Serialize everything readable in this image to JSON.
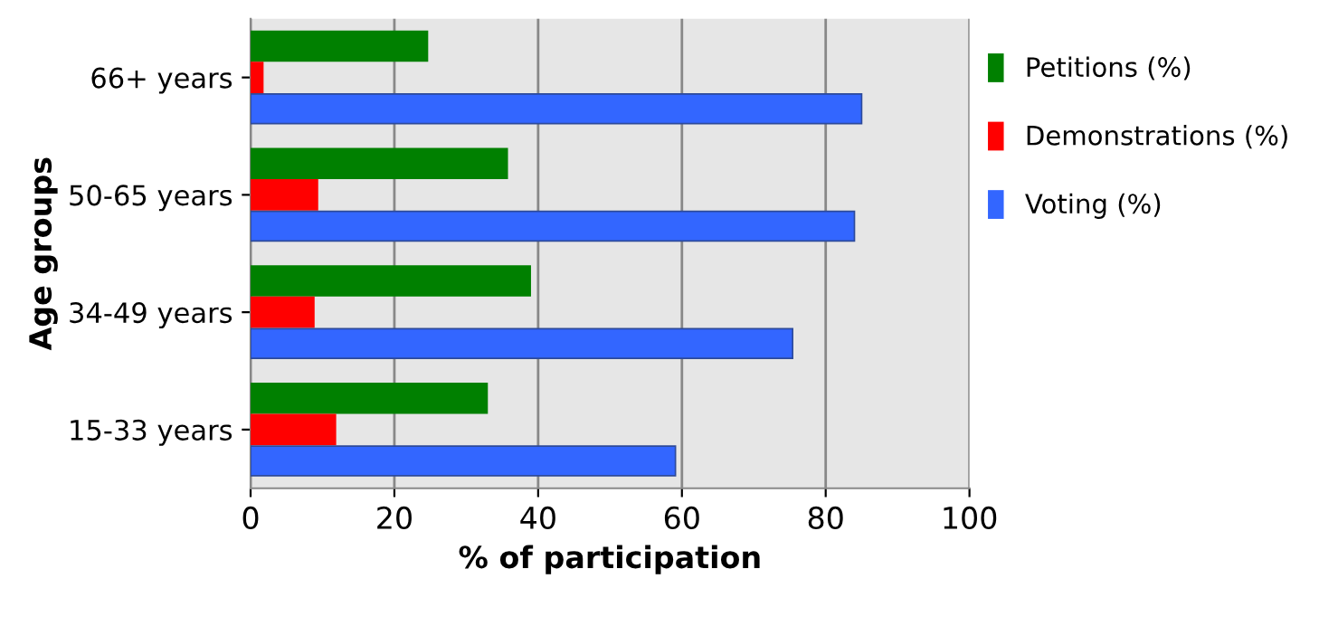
{
  "chart_data": {
    "type": "bar",
    "orientation": "horizontal",
    "xlabel": "% of participation",
    "ylabel": "Age groups",
    "categories": [
      "66+ years",
      "50-65 years",
      "34-49 years",
      "15-33 years"
    ],
    "series": [
      {
        "name": "Petitions (%)",
        "color": "#008000",
        "values": [
          24.6,
          35.7,
          38.9,
          32.9
        ]
      },
      {
        "name": "Demonstrations (%)",
        "color": "#ff0000",
        "values": [
          1.7,
          9.3,
          8.8,
          11.8
        ]
      },
      {
        "name": "Voting (%)",
        "color": "#3366ff",
        "values": [
          85.0,
          84.0,
          75.4,
          59.1
        ]
      }
    ],
    "xlim": [
      0,
      100
    ],
    "xticks": [
      0,
      20,
      40,
      60,
      80,
      100
    ],
    "grid": "x",
    "legend": "right"
  }
}
